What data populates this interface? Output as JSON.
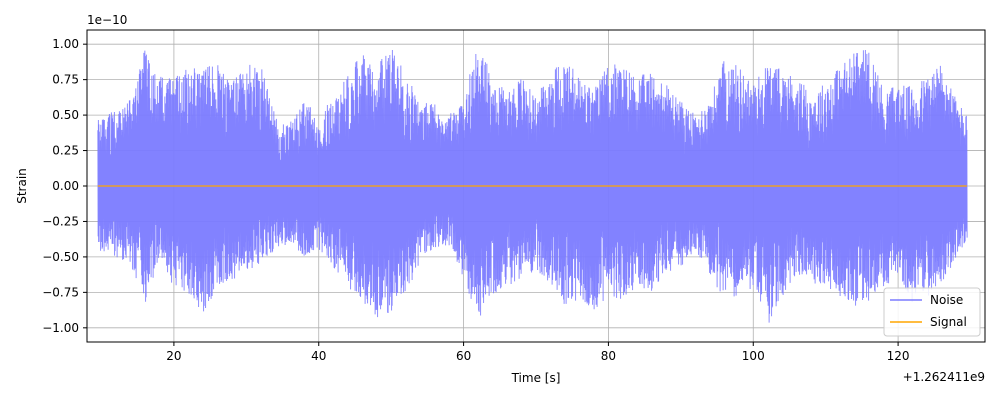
{
  "chart_data": {
    "type": "line",
    "xlabel": "Time [s]",
    "ylabel": "Strain",
    "y_exponent_label": "1e−10",
    "x_offset_label": "+1.262411e9",
    "xlim": [
      8,
      132
    ],
    "ylim": [
      -1.1,
      1.1
    ],
    "x_ticks": [
      20,
      40,
      60,
      80,
      100,
      120
    ],
    "x_tick_labels": [
      "20",
      "40",
      "60",
      "80",
      "100",
      "120"
    ],
    "y_ticks": [
      -1.0,
      -0.75,
      -0.5,
      -0.25,
      0.0,
      0.25,
      0.5,
      0.75,
      1.0
    ],
    "y_tick_labels": [
      "−1.00",
      "−0.75",
      "−0.50",
      "−0.25",
      "0.00",
      "0.25",
      "0.50",
      "0.75",
      "1.00"
    ],
    "grid": true,
    "legend_position": "bottom-right",
    "series": [
      {
        "name": "Noise",
        "color": "#7b7bff",
        "x_range": [
          9.5,
          129.5
        ],
        "envelope_x": [
          9.5,
          12,
          14,
          16,
          18,
          20,
          22,
          24,
          26,
          28,
          30,
          32,
          34,
          36,
          38,
          40,
          42,
          44,
          46,
          48,
          50,
          52,
          54,
          56,
          58,
          60,
          62,
          64,
          66,
          68,
          70,
          72,
          74,
          76,
          78,
          80,
          82,
          84,
          86,
          88,
          90,
          92,
          94,
          96,
          98,
          100,
          102,
          104,
          106,
          108,
          110,
          112,
          114,
          116,
          118,
          120,
          122,
          124,
          126,
          128,
          129.5
        ],
        "envelope_upper": [
          0.48,
          0.55,
          0.62,
          1.0,
          0.78,
          0.76,
          0.85,
          0.82,
          0.88,
          0.72,
          0.9,
          0.85,
          0.5,
          0.45,
          0.6,
          0.5,
          0.62,
          0.78,
          0.95,
          0.85,
          0.98,
          0.8,
          0.6,
          0.58,
          0.5,
          0.62,
          1.02,
          0.8,
          0.68,
          0.78,
          0.62,
          0.82,
          0.9,
          0.78,
          0.68,
          0.88,
          0.85,
          0.78,
          0.8,
          0.72,
          0.6,
          0.5,
          0.62,
          0.9,
          0.85,
          0.72,
          0.88,
          0.82,
          0.78,
          0.65,
          0.74,
          0.86,
          0.95,
          0.98,
          0.68,
          0.72,
          0.7,
          0.78,
          0.88,
          0.62,
          0.5
        ],
        "envelope_lower": [
          -0.45,
          -0.5,
          -0.55,
          -0.86,
          -0.55,
          -0.72,
          -0.76,
          -0.92,
          -0.72,
          -0.68,
          -0.6,
          -0.55,
          -0.45,
          -0.4,
          -0.5,
          -0.45,
          -0.58,
          -0.7,
          -0.88,
          -0.95,
          -0.9,
          -0.75,
          -0.55,
          -0.45,
          -0.42,
          -0.65,
          -0.95,
          -0.78,
          -0.72,
          -0.65,
          -0.6,
          -0.72,
          -0.85,
          -0.8,
          -0.88,
          -0.78,
          -0.82,
          -0.7,
          -0.76,
          -0.62,
          -0.58,
          -0.45,
          -0.62,
          -0.82,
          -0.78,
          -0.72,
          -1.0,
          -0.78,
          -0.62,
          -0.68,
          -0.72,
          -0.78,
          -0.88,
          -0.82,
          -0.72,
          -0.62,
          -0.85,
          -0.78,
          -0.7,
          -0.5,
          -0.42
        ]
      },
      {
        "name": "Signal",
        "color": "#ffa500",
        "x": [
          9.5,
          129.5
        ],
        "y": [
          0.0,
          0.0
        ]
      }
    ]
  }
}
